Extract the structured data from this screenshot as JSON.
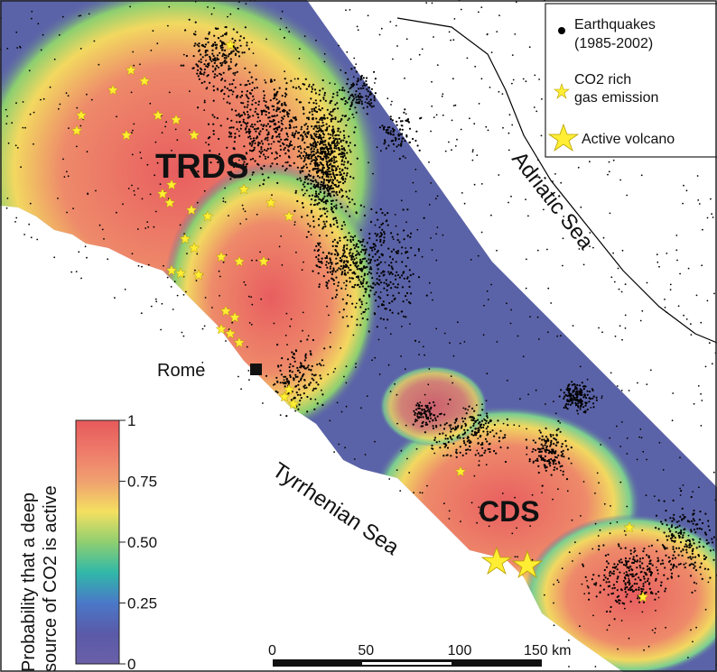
{
  "map": {
    "regions": {
      "north_region": "TRDS",
      "south_region": "CDS"
    },
    "city": "Rome",
    "seas": {
      "east": "Adriatic Sea",
      "west": "Tyrrhenian Sea"
    }
  },
  "legend": {
    "earthquakes_line1": "Earthquakes",
    "earthquakes_line2": "(1985-2002)",
    "co2_line1": "CO2 rich",
    "co2_line2": "gas emission",
    "volcano": "Active volcano"
  },
  "colorbar": {
    "label_line1": "Probability that a deep",
    "label_line2": "source of CO2 is active",
    "ticks": [
      "1",
      "0.75",
      "0.50",
      "0.25",
      "0"
    ],
    "tick_values": [
      1,
      0.75,
      0.5,
      0.25,
      0
    ],
    "stops": [
      "#e65a5a",
      "#ee7a6a",
      "#f0a070",
      "#f4e060",
      "#8fcf70",
      "#30b8a8",
      "#4a78c8",
      "#5a5aa8",
      "#6a60a8"
    ]
  },
  "scale_bar": {
    "ticks": [
      "0",
      "50",
      "100",
      "150 km"
    ],
    "tick_values": [
      0,
      50,
      100,
      150
    ]
  },
  "colors": {
    "high": "#e8606a",
    "mid": "#f2e060",
    "low": "#5b63a8",
    "star": "#ffee33"
  }
}
